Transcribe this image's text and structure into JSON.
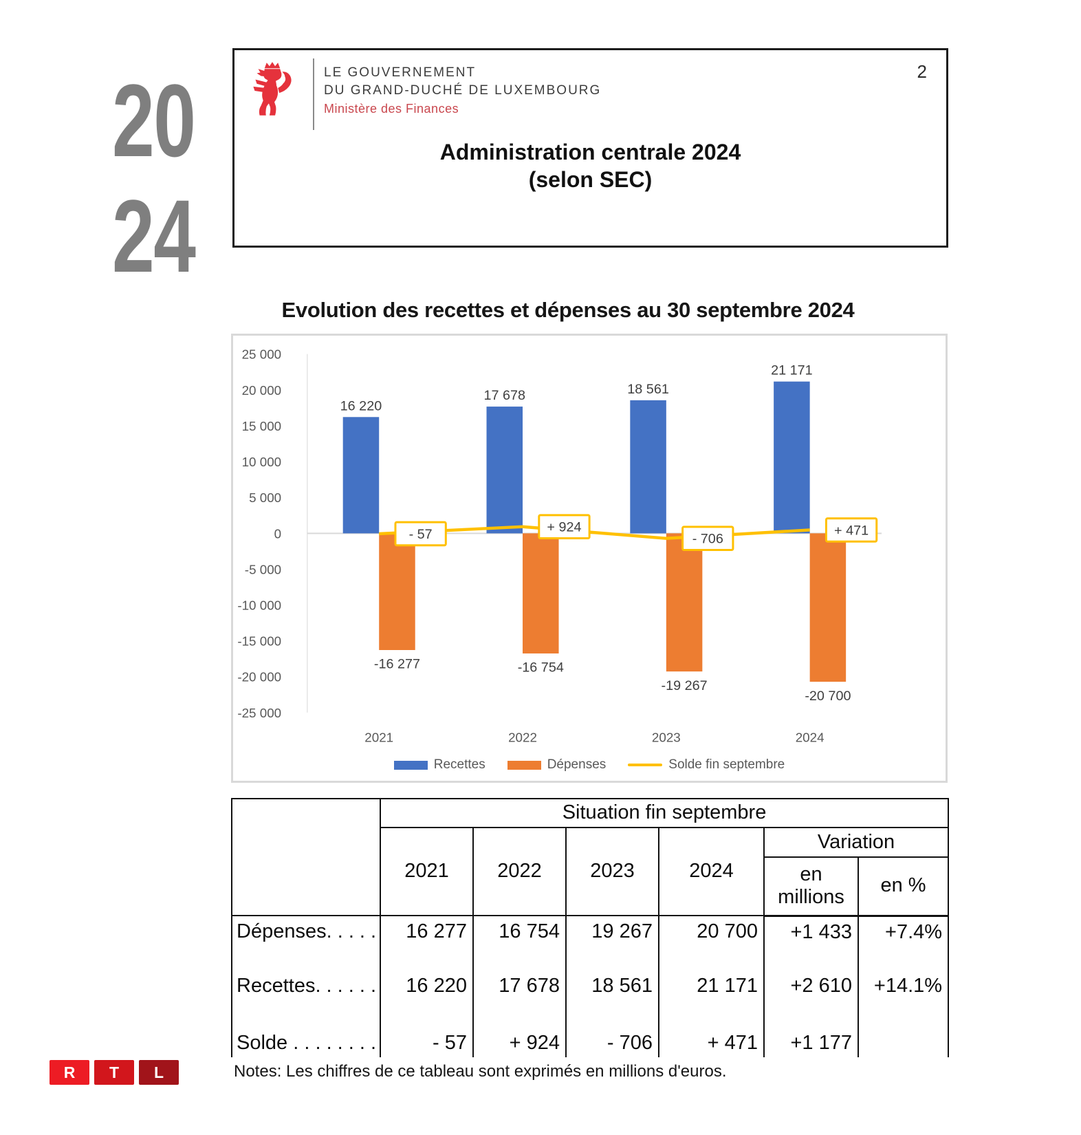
{
  "page_number": "2",
  "year_badge": {
    "line1": "20",
    "line2": "24"
  },
  "gov_header": {
    "line1": "LE GOUVERNEMENT",
    "line2": "DU GRAND-DUCHÉ DE LUXEMBOURG",
    "line3": "Ministère des Finances",
    "lion_color": "#e5323c",
    "ministry_color": "#c9474e"
  },
  "doc_title": {
    "line1": "Administration centrale 2024",
    "line2": "(selon SEC)"
  },
  "chart_data": {
    "type": "bar",
    "subtype": "combo-bar-line",
    "title": "Evolution des recettes et dépenses au 30 septembre 2024",
    "categories": [
      "2021",
      "2022",
      "2023",
      "2024"
    ],
    "series": [
      {
        "name": "Recettes",
        "kind": "bar",
        "color": "#4472c4",
        "values": [
          16220,
          17678,
          18561,
          21171
        ],
        "labels": [
          "16 220",
          "17 678",
          "18 561",
          "21 171"
        ]
      },
      {
        "name": "Dépenses",
        "kind": "bar",
        "color": "#ed7d31",
        "values": [
          -16277,
          -16754,
          -19267,
          -20700
        ],
        "labels": [
          "-16 277",
          "-16 754",
          "-19 267",
          "-20 700"
        ]
      },
      {
        "name": "Solde fin septembre",
        "kind": "line",
        "color": "#ffc000",
        "values": [
          -57,
          924,
          -706,
          471
        ],
        "labels": [
          "- 57",
          "+ 924",
          "- 706",
          "+ 471"
        ]
      }
    ],
    "ylim": [
      -25000,
      25000
    ],
    "ytick_values": [
      25000,
      20000,
      15000,
      10000,
      5000,
      0,
      -5000,
      -10000,
      -15000,
      -20000,
      -25000
    ],
    "ytick_labels": [
      "25 000",
      "20 000",
      "15 000",
      "10 000",
      "5 000",
      "0",
      "-5 000",
      "-10 000",
      "-15 000",
      "-20 000",
      "-25 000"
    ],
    "grid": "zero-line-only",
    "legend_position": "bottom"
  },
  "table": {
    "span_header": "Situation fin septembre",
    "variation_header": "Variation",
    "year_headers": [
      "2021",
      "2022",
      "2023",
      "2024"
    ],
    "variation_cols": [
      "en millions",
      "en %"
    ],
    "rows": [
      {
        "label": "Dépenses. . . . .",
        "values": [
          "16 277",
          "16 754",
          "19 267",
          "20 700",
          "+1 433",
          "+7.4%"
        ]
      },
      {
        "label": "Recettes. . . . . .",
        "values": [
          "16 220",
          "17 678",
          "18 561",
          "21 171",
          "+2 610",
          "+14.1%"
        ]
      },
      {
        "label": "Solde . . . . . . . . .",
        "values": [
          "- 57",
          "+ 924",
          "- 706",
          "+ 471",
          "+1 177",
          ""
        ]
      }
    ]
  },
  "notes": "Notes: Les chiffres de ce tableau sont exprimés en millions d'euros.",
  "rtl_logo": {
    "letters": [
      "R",
      "T",
      "L"
    ],
    "colors": [
      "#ed1c24",
      "#d2161c",
      "#a1141a"
    ]
  }
}
